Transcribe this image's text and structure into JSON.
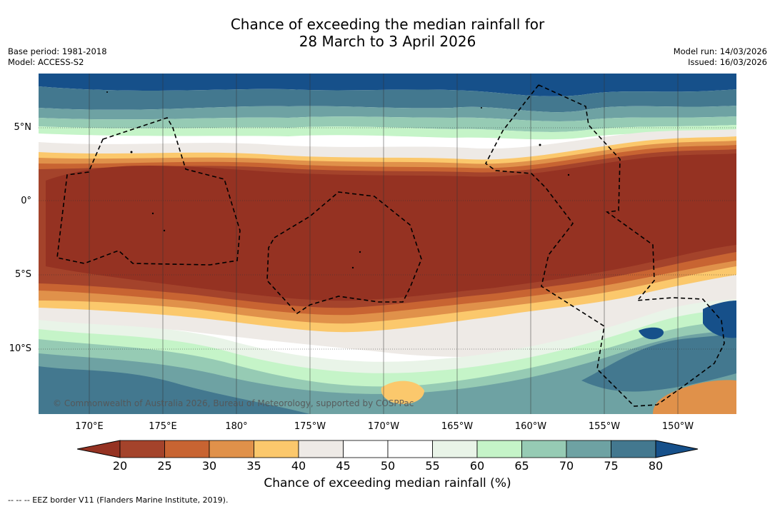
{
  "title_line1": "Chance of exceeding the median rainfall for",
  "title_line2": "28 March to 3 April 2026",
  "base_period": "Base period: 1981-2018",
  "model": "Model: ACCESS-S2",
  "model_run": "Model run: 14/03/2026",
  "issued": "Issued: 16/03/2026",
  "lat_labels": [
    "5°N",
    "0°",
    "5°S",
    "10°S"
  ],
  "lon_labels": [
    "170°E",
    "175°E",
    "180°",
    "175°W",
    "170°W",
    "165°W",
    "160°W",
    "155°W",
    "150°W"
  ],
  "copyright": "© Commonwealth of Australia 2026, Bureau of Meteorology, supported by COSPPac",
  "colorbar": {
    "title": "Chance of exceeding median rainfall (%)",
    "ticks": [
      "20",
      "25",
      "30",
      "35",
      "40",
      "45",
      "50",
      "55",
      "60",
      "65",
      "70",
      "75",
      "80"
    ],
    "colors": [
      "#a4432b",
      "#c86432",
      "#e0914a",
      "#fbc86c",
      "#eeeae6",
      "#ffffff",
      "#ffffff",
      "#e9f4e8",
      "#c5f4c8",
      "#96cbb4",
      "#6ea2a3",
      "#43788f"
    ],
    "low_color": "#953222",
    "high_color": "#16508a"
  },
  "footnote": "--  --  -- EEZ border V11 (Flanders Marine Institute, 2019)."
}
